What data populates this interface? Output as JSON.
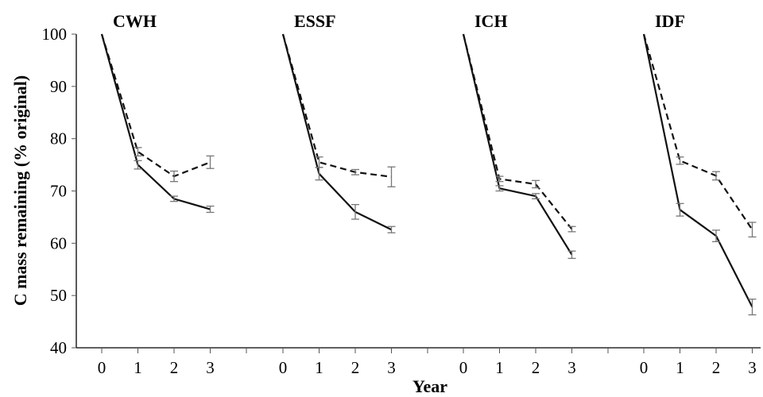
{
  "chart_data": {
    "type": "line",
    "ylabel": "C mass remaining (% original)",
    "xlabel": "Year",
    "ylim": [
      40,
      100
    ],
    "yticks": [
      40,
      50,
      60,
      70,
      80,
      90,
      100
    ],
    "x": [
      0,
      1,
      2,
      3
    ],
    "grid": false,
    "line_styles": {
      "solid": "#111111",
      "dashed": "#111111",
      "error_bar": "#777777"
    },
    "panels": [
      {
        "title": "CWH",
        "series": [
          {
            "style": "solid",
            "values": [
              100,
              75.0,
              68.5,
              66.5
            ],
            "errors": [
              0,
              0.8,
              0.5,
              0.6
            ]
          },
          {
            "style": "dashed",
            "values": [
              100,
              77.5,
              72.8,
              75.5
            ],
            "errors": [
              0,
              0.8,
              1.0,
              1.2
            ]
          }
        ]
      },
      {
        "title": "ESSF",
        "series": [
          {
            "style": "solid",
            "values": [
              100,
              73.3,
              66.0,
              62.6
            ],
            "errors": [
              0,
              1.2,
              1.4,
              0.6
            ]
          },
          {
            "style": "dashed",
            "values": [
              100,
              75.5,
              73.6,
              72.7
            ],
            "errors": [
              0,
              1.0,
              0.5,
              1.9
            ]
          }
        ]
      },
      {
        "title": "ICH",
        "series": [
          {
            "style": "solid",
            "values": [
              100,
              70.5,
              69.0,
              57.8
            ],
            "errors": [
              0,
              0.5,
              0.5,
              0.7
            ]
          },
          {
            "style": "dashed",
            "values": [
              100,
              72.3,
              71.3,
              62.7
            ],
            "errors": [
              0,
              0.5,
              0.7,
              0.5
            ]
          }
        ]
      },
      {
        "title": "IDF",
        "series": [
          {
            "style": "solid",
            "values": [
              100,
              66.4,
              61.4,
              47.8
            ],
            "errors": [
              0,
              1.2,
              1.1,
              1.5
            ]
          },
          {
            "style": "dashed",
            "values": [
              100,
              75.8,
              72.9,
              62.6
            ],
            "errors": [
              0,
              0.7,
              0.8,
              1.4
            ]
          }
        ]
      }
    ]
  }
}
